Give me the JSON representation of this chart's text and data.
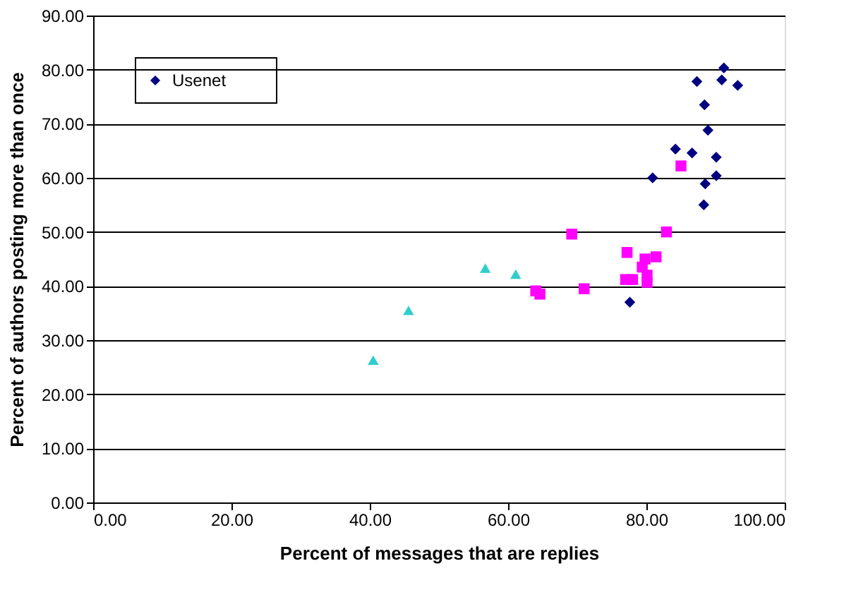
{
  "chart_data": {
    "type": "scatter",
    "xlabel": "Percent of messages that are replies",
    "ylabel": "Percent of authors posting more than once",
    "xlim": [
      0,
      100
    ],
    "ylim": [
      0,
      90
    ],
    "xticks": [
      {
        "value": 0,
        "label": "0.00"
      },
      {
        "value": 20,
        "label": "20.00"
      },
      {
        "value": 40,
        "label": "40.00"
      },
      {
        "value": 60,
        "label": "60.00"
      },
      {
        "value": 80,
        "label": "80.00"
      },
      {
        "value": 100,
        "label": "100.00"
      }
    ],
    "yticks": [
      {
        "value": 0,
        "label": "0.00"
      },
      {
        "value": 10,
        "label": "10.00"
      },
      {
        "value": 20,
        "label": "20.00"
      },
      {
        "value": 30,
        "label": "30.00"
      },
      {
        "value": 40,
        "label": "40.00"
      },
      {
        "value": 50,
        "label": "50.00"
      },
      {
        "value": 60,
        "label": "60.00"
      },
      {
        "value": 70,
        "label": "70.00"
      },
      {
        "value": 80,
        "label": "80.00"
      },
      {
        "value": 90,
        "label": "90.00"
      }
    ],
    "grid": "y",
    "legend": "top left",
    "series": [
      {
        "name": "Usenet",
        "color": "#000080",
        "marker": "diamond",
        "x": [
          91.2,
          87.3,
          90.9,
          93.2,
          88.4,
          88.9,
          84.2,
          86.6,
          90.1,
          90.1,
          80.9,
          88.5,
          88.3,
          77.6
        ],
        "values": [
          80.3,
          77.8,
          78.1,
          77.1,
          73.5,
          68.8,
          65.3,
          64.6,
          63.8,
          60.4,
          60.0,
          58.9,
          55.0,
          37.0
        ]
      },
      {
        "color": "#ff00ff",
        "marker": "square",
        "x": [
          85.0,
          69.2,
          82.9,
          77.2,
          79.8,
          81.4,
          79.4,
          77.0,
          78.0,
          80.1,
          80.1,
          64.0,
          64.6,
          71.0
        ],
        "values": [
          62.2,
          49.6,
          50.0,
          46.2,
          45.0,
          45.4,
          43.5,
          41.2,
          41.2,
          42.0,
          40.7,
          39.1,
          38.5,
          39.5
        ]
      },
      {
        "color": "#33cccc",
        "marker": "triangle",
        "x": [
          40.5,
          45.6,
          56.7,
          61.1
        ],
        "values": [
          26.3,
          35.5,
          43.3,
          42.2
        ]
      }
    ]
  }
}
